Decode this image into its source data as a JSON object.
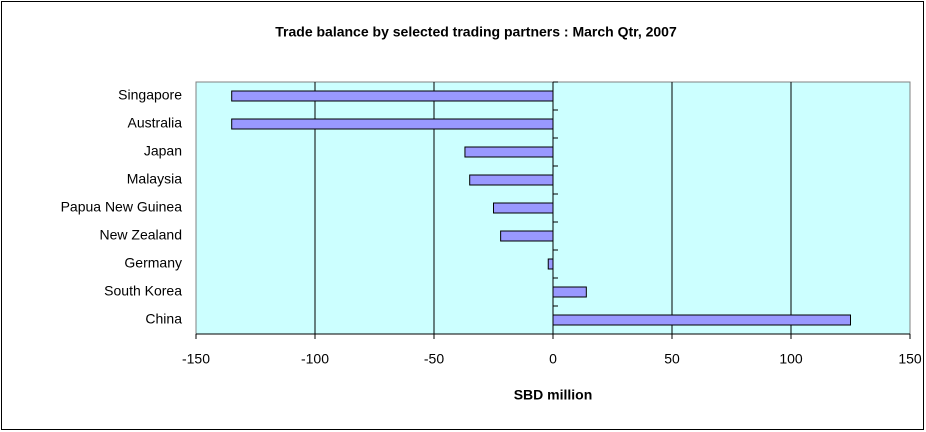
{
  "chart_data": {
    "type": "hbar",
    "title": "Trade balance by selected trading partners : March Qtr, 2007",
    "x_label": "SBD million",
    "categories": [
      "Singapore",
      "Australia",
      "Japan",
      "Malaysia",
      "Papua New Guinea",
      "New Zealand",
      "Germany",
      "South Korea",
      "China"
    ],
    "values": [
      -135,
      -135,
      -37,
      -35,
      -25,
      -22,
      -2,
      14,
      125
    ],
    "color": "#9999ff",
    "background": "#ccffff",
    "xlim": [
      -150,
      150
    ],
    "xticks": [
      -150,
      -100,
      -50,
      0,
      50,
      100,
      150
    ],
    "grid": true
  }
}
